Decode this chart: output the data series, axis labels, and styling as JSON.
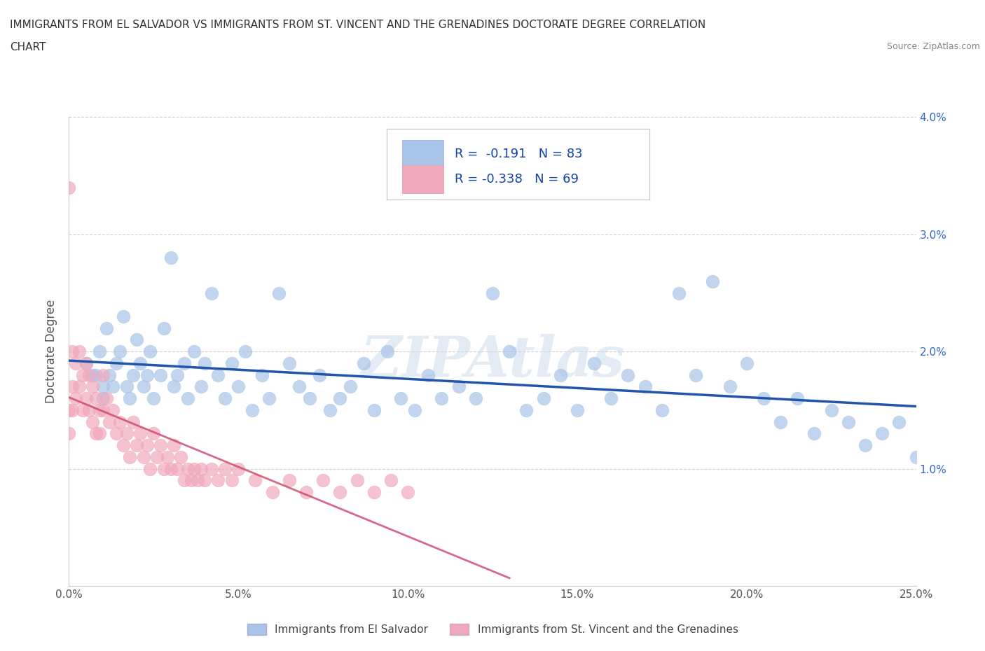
{
  "title_line1": "IMMIGRANTS FROM EL SALVADOR VS IMMIGRANTS FROM ST. VINCENT AND THE GRENADINES DOCTORATE DEGREE CORRELATION",
  "title_line2": "CHART",
  "source": "Source: ZipAtlas.com",
  "ylabel": "Doctorate Degree",
  "xlim": [
    0.0,
    0.25
  ],
  "ylim": [
    0.0,
    0.04
  ],
  "xticks": [
    0.0,
    0.05,
    0.1,
    0.15,
    0.2,
    0.25
  ],
  "yticks": [
    0.0,
    0.01,
    0.02,
    0.03,
    0.04
  ],
  "xtick_labels": [
    "0.0%",
    "5.0%",
    "10.0%",
    "15.0%",
    "20.0%",
    "25.0%"
  ],
  "ytick_labels_left": [
    "",
    "",
    "",
    "",
    ""
  ],
  "ytick_labels_right": [
    "",
    "1.0%",
    "2.0%",
    "3.0%",
    "4.0%"
  ],
  "blue_color": "#a8c4e8",
  "pink_color": "#f0a8bc",
  "blue_line_color": "#2255aa",
  "pink_line_color": "#cc4466",
  "legend_blue_label": "R =  -0.191   N = 83",
  "legend_pink_label": "R = -0.338   N = 69",
  "legend_blue_color": "#a8c4e8",
  "legend_pink_color": "#f0a8bc",
  "watermark": "ZIPAtlas",
  "legend_label_blue": "Immigrants from El Salvador",
  "legend_label_pink": "Immigrants from St. Vincent and the Grenadines",
  "blue_scatter_x": [
    0.005,
    0.007,
    0.008,
    0.009,
    0.01,
    0.01,
    0.011,
    0.012,
    0.013,
    0.014,
    0.015,
    0.016,
    0.017,
    0.018,
    0.019,
    0.02,
    0.021,
    0.022,
    0.023,
    0.024,
    0.025,
    0.027,
    0.028,
    0.03,
    0.031,
    0.032,
    0.034,
    0.035,
    0.037,
    0.039,
    0.04,
    0.042,
    0.044,
    0.046,
    0.048,
    0.05,
    0.052,
    0.054,
    0.057,
    0.059,
    0.062,
    0.065,
    0.068,
    0.071,
    0.074,
    0.077,
    0.08,
    0.083,
    0.087,
    0.09,
    0.094,
    0.098,
    0.102,
    0.106,
    0.11,
    0.115,
    0.12,
    0.125,
    0.13,
    0.135,
    0.14,
    0.145,
    0.15,
    0.155,
    0.16,
    0.165,
    0.17,
    0.175,
    0.18,
    0.185,
    0.19,
    0.195,
    0.2,
    0.205,
    0.21,
    0.215,
    0.22,
    0.225,
    0.23,
    0.235,
    0.24,
    0.245,
    0.25
  ],
  "blue_scatter_y": [
    0.019,
    0.018,
    0.018,
    0.02,
    0.017,
    0.016,
    0.022,
    0.018,
    0.017,
    0.019,
    0.02,
    0.023,
    0.017,
    0.016,
    0.018,
    0.021,
    0.019,
    0.017,
    0.018,
    0.02,
    0.016,
    0.018,
    0.022,
    0.028,
    0.017,
    0.018,
    0.019,
    0.016,
    0.02,
    0.017,
    0.019,
    0.025,
    0.018,
    0.016,
    0.019,
    0.017,
    0.02,
    0.015,
    0.018,
    0.016,
    0.025,
    0.019,
    0.017,
    0.016,
    0.018,
    0.015,
    0.016,
    0.017,
    0.019,
    0.015,
    0.02,
    0.016,
    0.015,
    0.018,
    0.016,
    0.017,
    0.016,
    0.025,
    0.02,
    0.015,
    0.016,
    0.018,
    0.015,
    0.019,
    0.016,
    0.018,
    0.017,
    0.015,
    0.025,
    0.018,
    0.026,
    0.017,
    0.019,
    0.016,
    0.014,
    0.016,
    0.013,
    0.015,
    0.014,
    0.012,
    0.013,
    0.014,
    0.011
  ],
  "pink_scatter_x": [
    0.0,
    0.0,
    0.0,
    0.001,
    0.001,
    0.001,
    0.002,
    0.002,
    0.003,
    0.003,
    0.004,
    0.004,
    0.005,
    0.005,
    0.006,
    0.006,
    0.007,
    0.007,
    0.008,
    0.008,
    0.009,
    0.009,
    0.01,
    0.01,
    0.011,
    0.012,
    0.013,
    0.014,
    0.015,
    0.016,
    0.017,
    0.018,
    0.019,
    0.02,
    0.021,
    0.022,
    0.023,
    0.024,
    0.025,
    0.026,
    0.027,
    0.028,
    0.029,
    0.03,
    0.031,
    0.032,
    0.033,
    0.034,
    0.035,
    0.036,
    0.037,
    0.038,
    0.039,
    0.04,
    0.042,
    0.044,
    0.046,
    0.048,
    0.05,
    0.055,
    0.06,
    0.065,
    0.07,
    0.075,
    0.08,
    0.085,
    0.09,
    0.095,
    0.1
  ],
  "pink_scatter_y": [
    0.034,
    0.015,
    0.013,
    0.02,
    0.017,
    0.015,
    0.019,
    0.016,
    0.02,
    0.017,
    0.018,
    0.015,
    0.019,
    0.016,
    0.018,
    0.015,
    0.017,
    0.014,
    0.016,
    0.013,
    0.015,
    0.013,
    0.018,
    0.015,
    0.016,
    0.014,
    0.015,
    0.013,
    0.014,
    0.012,
    0.013,
    0.011,
    0.014,
    0.012,
    0.013,
    0.011,
    0.012,
    0.01,
    0.013,
    0.011,
    0.012,
    0.01,
    0.011,
    0.01,
    0.012,
    0.01,
    0.011,
    0.009,
    0.01,
    0.009,
    0.01,
    0.009,
    0.01,
    0.009,
    0.01,
    0.009,
    0.01,
    0.009,
    0.01,
    0.009,
    0.008,
    0.009,
    0.008,
    0.009,
    0.008,
    0.009,
    0.008,
    0.009,
    0.008
  ]
}
